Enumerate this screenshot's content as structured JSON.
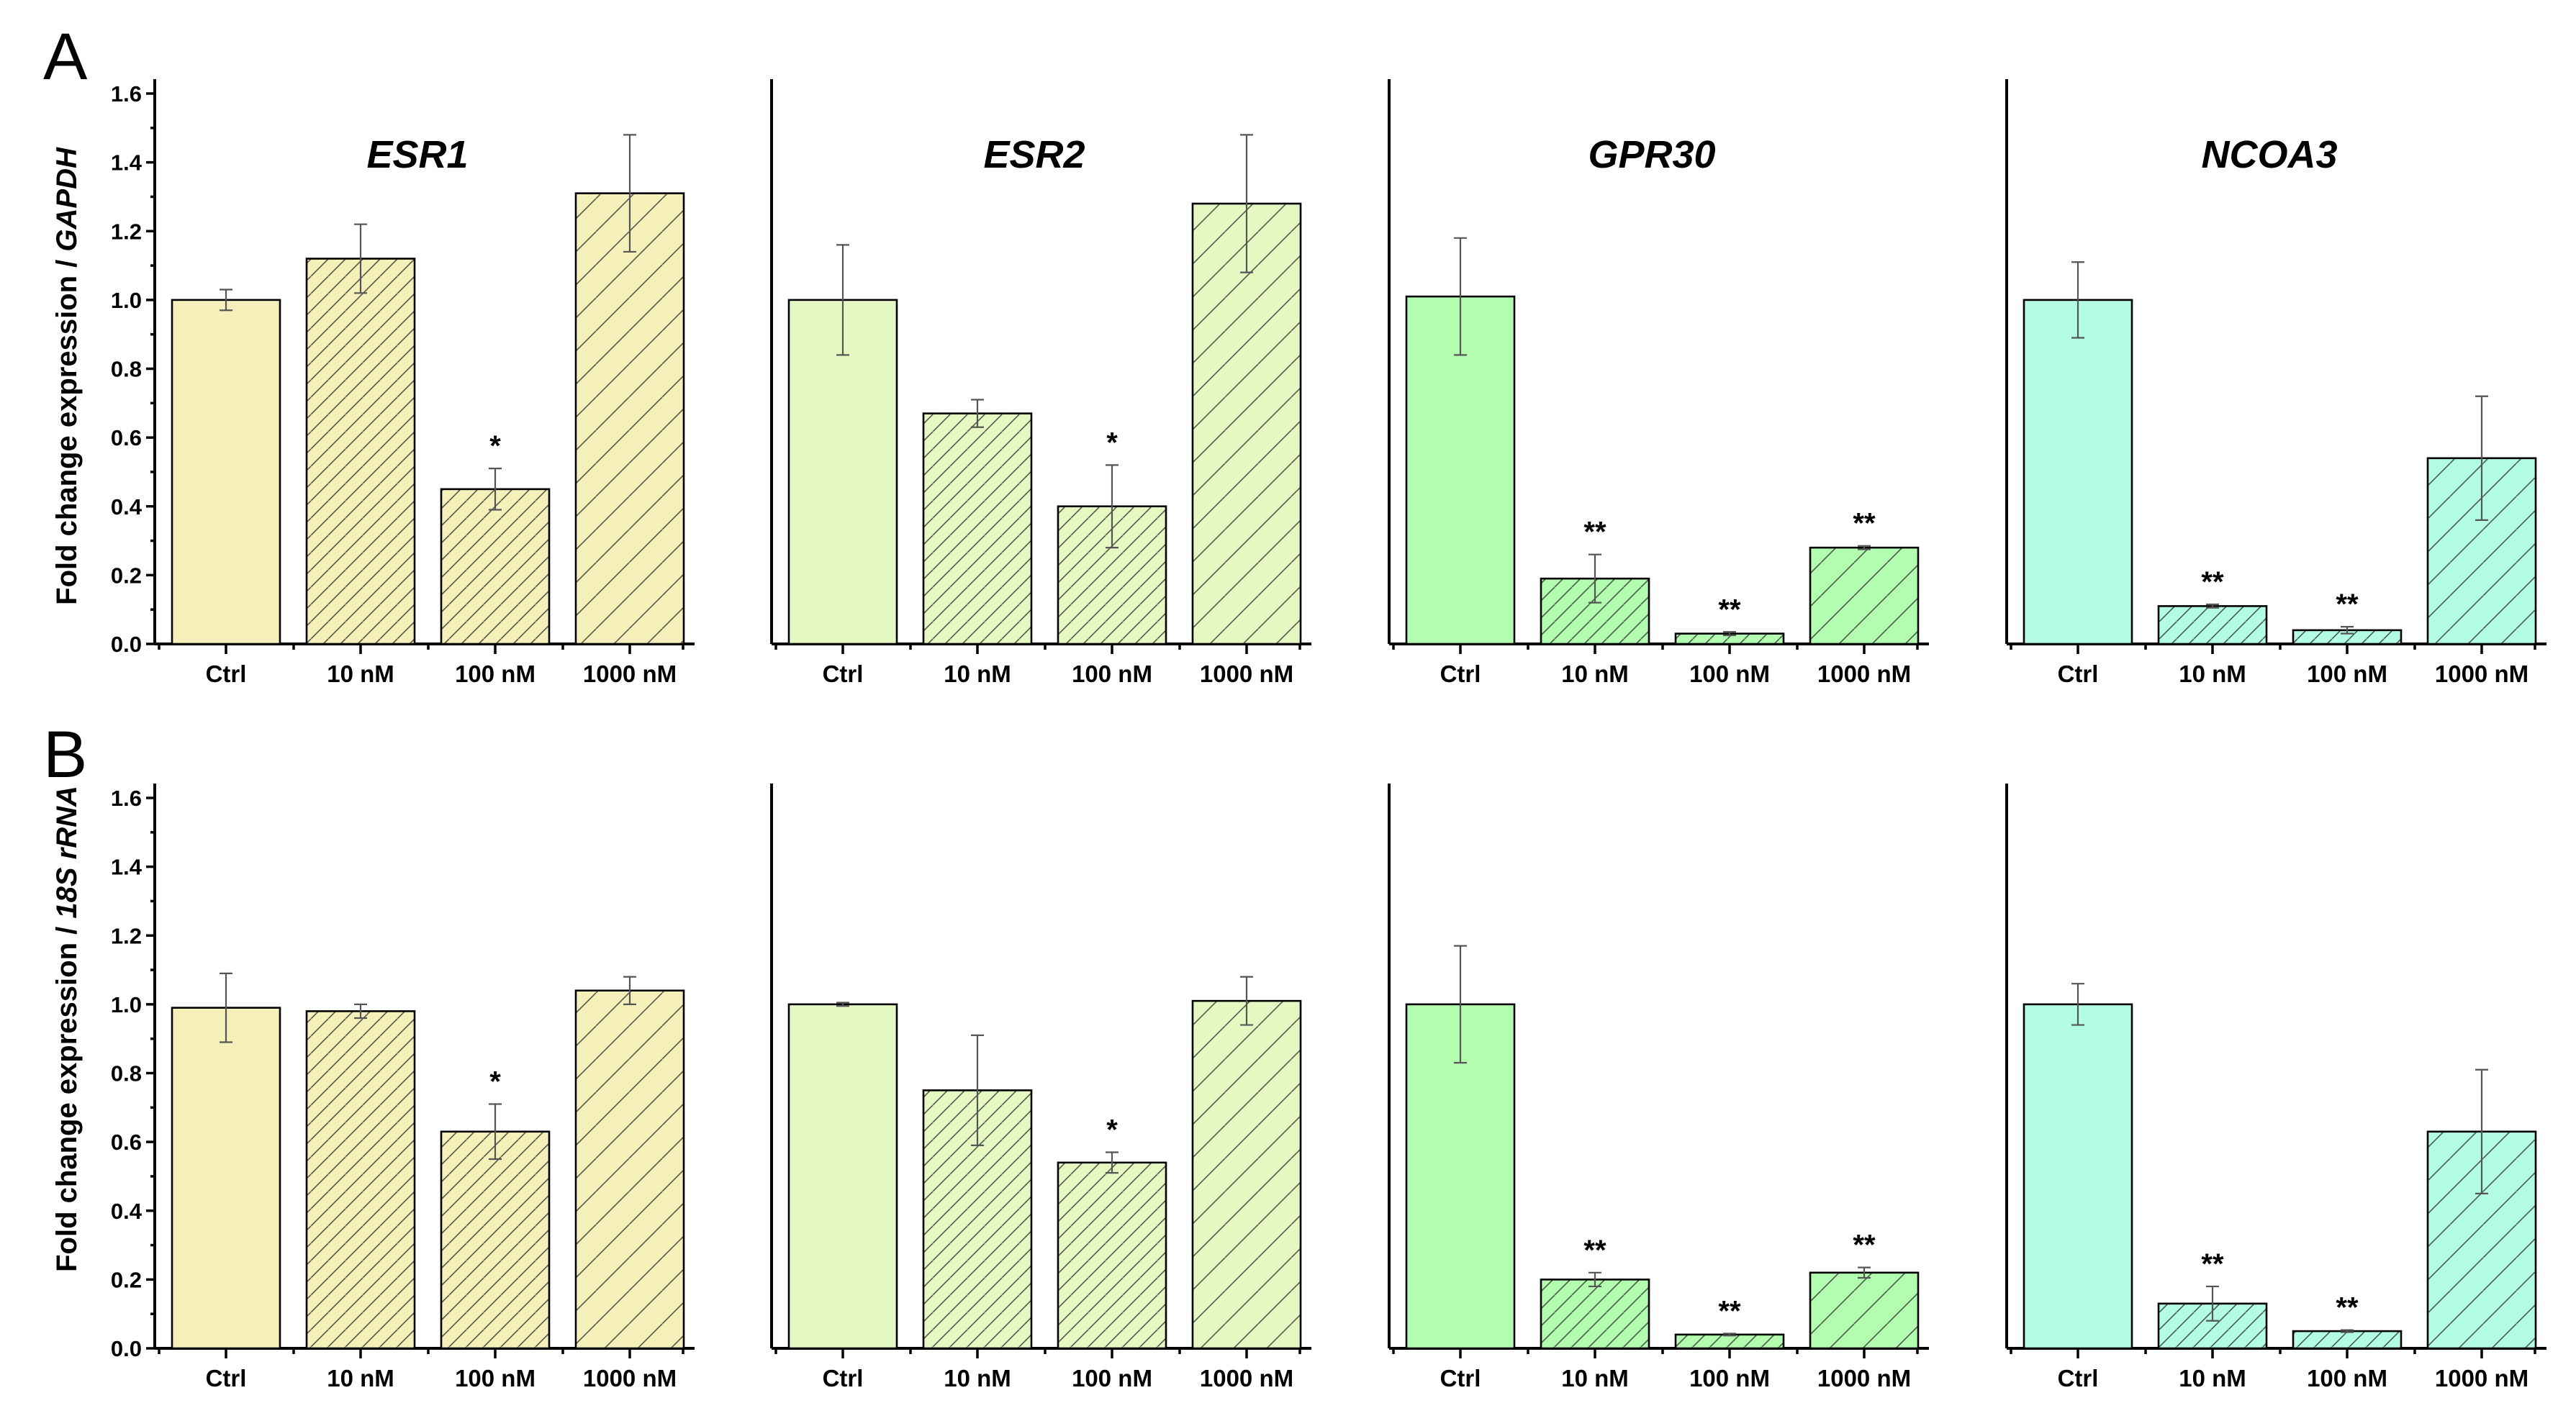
{
  "panel_labels": [
    "A",
    "B"
  ],
  "categories": [
    "Ctrl",
    "10 nM",
    "100 nM",
    "1000 nM"
  ],
  "yticks": [
    "0.0",
    "0.2",
    "0.4",
    "0.6",
    "0.8",
    "1.0",
    "1.2",
    "1.4",
    "1.6"
  ],
  "ylabel_prefix": "Fold change expression / ",
  "colors": {
    "ESR1": "#f5f0b9",
    "ESR2": "#e6f8c2",
    "GPR30": "#b3fdb0",
    "NCOA3": "#b2fde4"
  },
  "chart_data": [
    {
      "type": "bar",
      "panel": "A",
      "ylabel": "Fold change expression / GAPDH",
      "ylabel_norm": "GAPDH",
      "ylim": [
        0,
        1.6
      ],
      "categories": [
        "Ctrl",
        "10 nM",
        "100 nM",
        "1000 nM"
      ],
      "groups": [
        {
          "title": "ESR1",
          "values": [
            1.0,
            1.12,
            0.45,
            1.31
          ],
          "errors": [
            0.03,
            0.1,
            0.06,
            0.17
          ],
          "significance": [
            "",
            "",
            "*",
            ""
          ]
        },
        {
          "title": "ESR2",
          "values": [
            1.0,
            0.67,
            0.4,
            1.28
          ],
          "errors": [
            0.16,
            0.04,
            0.12,
            0.2
          ],
          "significance": [
            "",
            "",
            "*",
            ""
          ]
        },
        {
          "title": "GPR30",
          "values": [
            1.01,
            0.19,
            0.03,
            0.28
          ],
          "errors": [
            0.17,
            0.07,
            0.005,
            0.005
          ],
          "significance": [
            "",
            "**",
            "**",
            "**"
          ]
        },
        {
          "title": "NCOA3",
          "values": [
            1.0,
            0.11,
            0.04,
            0.54
          ],
          "errors": [
            0.11,
            0.005,
            0.01,
            0.18
          ],
          "significance": [
            "",
            "**",
            "**",
            ""
          ]
        }
      ]
    },
    {
      "type": "bar",
      "panel": "B",
      "ylabel": "Fold change expression / 18S rRNA",
      "ylabel_norm": "18S rRNA",
      "ylim": [
        0,
        1.6
      ],
      "categories": [
        "Ctrl",
        "10 nM",
        "100 nM",
        "1000 nM"
      ],
      "groups": [
        {
          "title": "ESR1",
          "values": [
            0.99,
            0.98,
            0.63,
            1.04
          ],
          "errors": [
            0.1,
            0.02,
            0.08,
            0.04
          ],
          "significance": [
            "",
            "",
            "*",
            ""
          ]
        },
        {
          "title": "ESR2",
          "values": [
            1.0,
            0.75,
            0.54,
            1.01
          ],
          "errors": [
            0.005,
            0.16,
            0.03,
            0.07
          ],
          "significance": [
            "",
            "",
            "*",
            ""
          ]
        },
        {
          "title": "GPR30",
          "values": [
            1.0,
            0.2,
            0.04,
            0.22
          ],
          "errors": [
            0.17,
            0.02,
            0.003,
            0.015
          ],
          "significance": [
            "",
            "**",
            "**",
            "**"
          ]
        },
        {
          "title": "NCOA3",
          "values": [
            1.0,
            0.13,
            0.05,
            0.63
          ],
          "errors": [
            0.06,
            0.05,
            0.003,
            0.18
          ],
          "significance": [
            "",
            "**",
            "**",
            ""
          ]
        }
      ]
    }
  ]
}
